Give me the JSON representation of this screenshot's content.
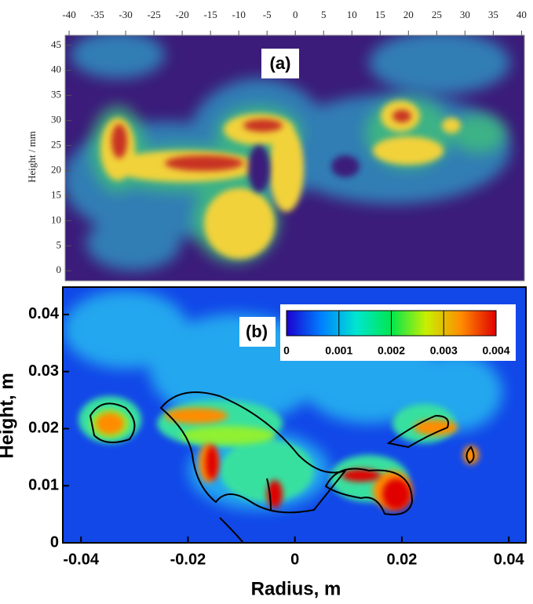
{
  "chart_data": [
    {
      "type": "image",
      "label": "(a)",
      "ylabel": "Height / mm",
      "xlim": [
        -40.7,
        40.5
      ],
      "xticks": [
        -40,
        -35,
        -30,
        -25,
        -20,
        -15,
        -10,
        -5,
        0,
        5,
        10,
        15,
        20,
        25,
        30,
        35,
        40
      ],
      "ylim": [
        -2,
        47
      ],
      "yticks": [
        0,
        5,
        10,
        15,
        20,
        25,
        30,
        35,
        40,
        45
      ]
    },
    {
      "type": "heatmap",
      "label": "(b)",
      "xlabel": "Radius, m",
      "ylabel": "Height, m",
      "xlim": [
        -0.0434,
        0.0432
      ],
      "xticks": [
        -0.04,
        -0.02,
        0,
        0.02,
        0.04
      ],
      "ylim": [
        0,
        0.0448
      ],
      "yticks": [
        0,
        0.01,
        0.02,
        0.03,
        0.04
      ],
      "colorbar": {
        "ticks": [
          0,
          0.001,
          0.002,
          0.003,
          0.004
        ],
        "colors": [
          "#1a00d0",
          "#0080ff",
          "#00e6d0",
          "#00e650",
          "#c8f000",
          "#ff8c00",
          "#e00000"
        ]
      }
    }
  ]
}
